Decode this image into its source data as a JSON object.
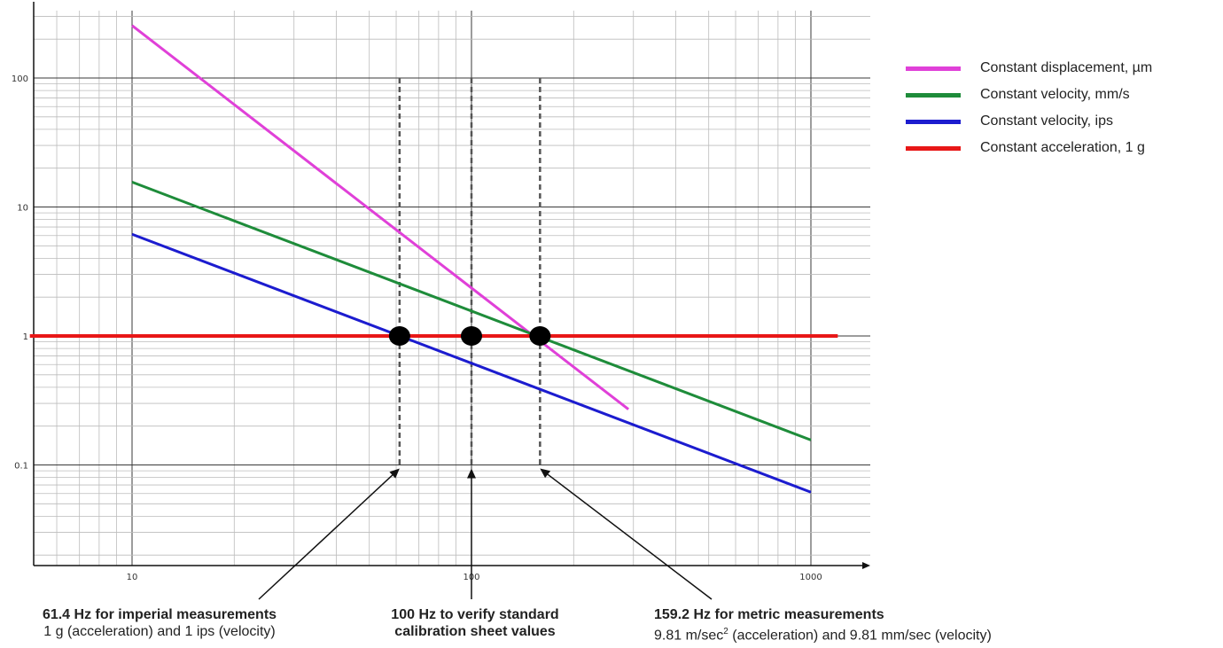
{
  "chart_data": {
    "type": "line",
    "x_scale": "log",
    "y_scale": "log",
    "xlim": [
      5,
      1200
    ],
    "ylim": [
      0.02,
      400
    ],
    "grid": true,
    "x_ticks": [
      "10",
      "100",
      "1000"
    ],
    "y_ticks": [
      "0.1",
      "1",
      "10",
      "100"
    ],
    "legend_position": "top-right",
    "series": [
      {
        "name": "Constant displacement, µm",
        "color": "#e040d8",
        "x": [
          10,
          290
        ],
        "y": [
          255,
          0.27
        ]
      },
      {
        "name": "Constant velocity, mm/s",
        "color": "#1e8c3a",
        "x": [
          10,
          1000
        ],
        "y": [
          15.6,
          0.156
        ]
      },
      {
        "name": "Constant velocity, ips",
        "color": "#1c1ccf",
        "x": [
          10,
          1000
        ],
        "y": [
          6.15,
          0.0615
        ]
      },
      {
        "name": "Constant acceleration, 1 g",
        "color": "#e81717",
        "x": [
          5,
          1200
        ],
        "y": [
          1,
          1
        ]
      }
    ],
    "markers": [
      {
        "x": 61.4,
        "y": 1
      },
      {
        "x": 100,
        "y": 1
      },
      {
        "x": 159.2,
        "y": 1
      }
    ],
    "reference_lines": [
      {
        "x": 61.4,
        "y_from": 0.1,
        "y_to": 100
      },
      {
        "x": 100,
        "y_from": 0.1,
        "y_to": 100
      },
      {
        "x": 159.2,
        "y_from": 0.1,
        "y_to": 100
      }
    ],
    "annotations": [
      {
        "title": "61.4 Hz for imperial measurements",
        "line1": "1 g (acceleration) and 1 ips (velocity)",
        "target_x": 61.4
      },
      {
        "title": "100 Hz to verify standard",
        "line1": "calibration sheet values",
        "target_x": 100
      },
      {
        "title": "159.2 Hz for metric measurements",
        "line1_a": "9.81 m/sec",
        "line1_sup": "2",
        "line1_b": " (acceleration) and 9.81 mm/sec (velocity)",
        "target_x": 159.2
      }
    ]
  }
}
